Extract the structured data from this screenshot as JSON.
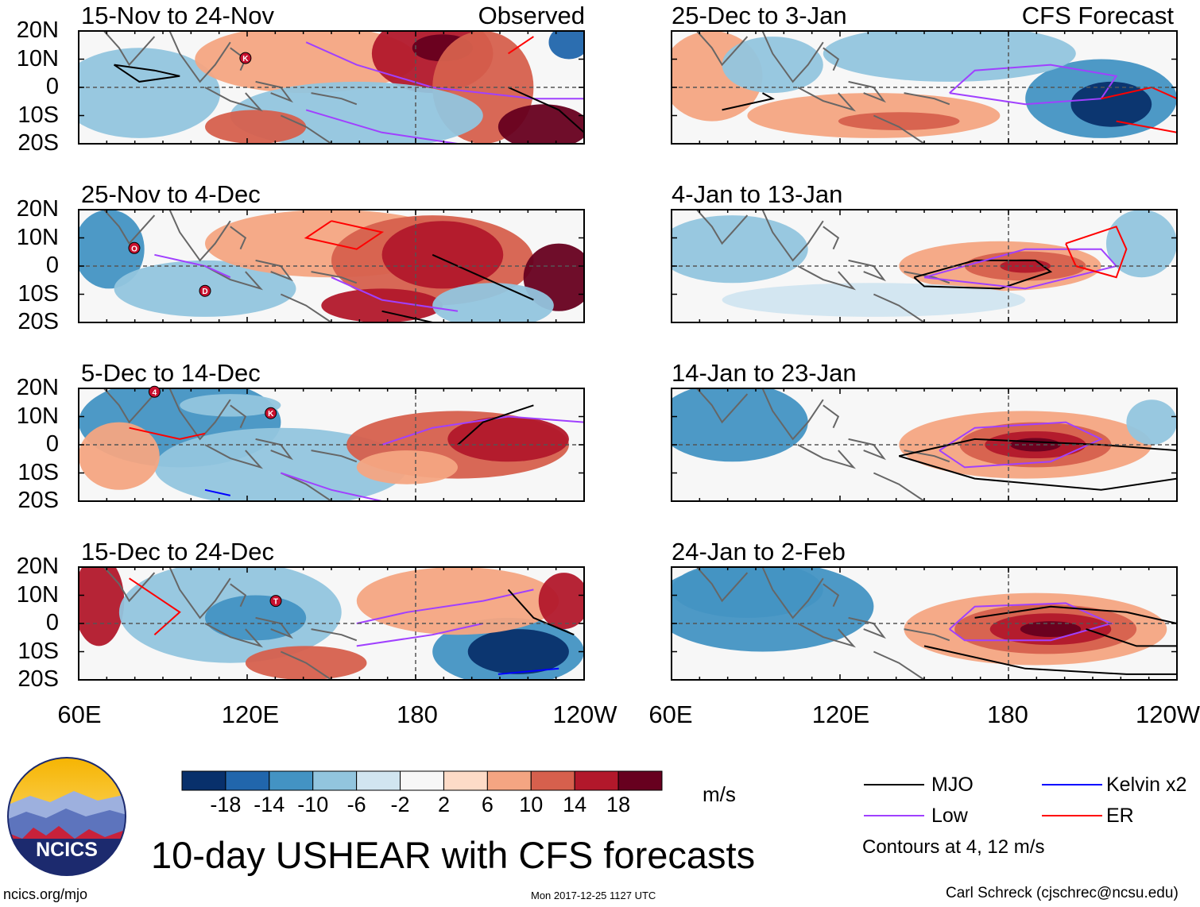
{
  "figure": {
    "title": "10-day USHEAR with CFS forecasts",
    "left_header": "Observed",
    "right_header": "CFS Forecast",
    "url": "ncics.org/mjo",
    "timestamp": "Mon 2017-12-25 1127 UTC",
    "author": "Carl Schreck (cjschrec@ncsu.edu)",
    "logo_text": "NCICS"
  },
  "axes": {
    "lat_labels": [
      "20N",
      "10N",
      "0",
      "10S",
      "20S"
    ],
    "lon_labels": [
      "60E",
      "120E",
      "180",
      "120W"
    ]
  },
  "panels": [
    {
      "title": "15-Nov to 24-Nov",
      "kind": "observed"
    },
    {
      "title": "25-Nov to 4-Dec",
      "kind": "observed"
    },
    {
      "title": "5-Dec to 14-Dec",
      "kind": "observed"
    },
    {
      "title": "15-Dec to 24-Dec",
      "kind": "observed"
    },
    {
      "title": "25-Dec to 3-Jan",
      "kind": "forecast"
    },
    {
      "title": "4-Jan to 13-Jan",
      "kind": "forecast"
    },
    {
      "title": "14-Jan to 23-Jan",
      "kind": "forecast"
    },
    {
      "title": "24-Jan to 2-Feb",
      "kind": "forecast"
    }
  ],
  "colorbar": {
    "unit": "m/s",
    "labels": [
      "-18",
      "-14",
      "-10",
      "-6",
      "-2",
      "2",
      "6",
      "10",
      "14",
      "18"
    ],
    "colors": [
      "#08306b",
      "#2166ac",
      "#4393c3",
      "#92c5de",
      "#d1e5f0",
      "#f7f7f7",
      "#fddbc7",
      "#f4a582",
      "#d6604d",
      "#b2182b",
      "#67001f"
    ]
  },
  "legend": {
    "items": [
      {
        "label": "MJO",
        "color": "#000000"
      },
      {
        "label": "Low",
        "color": "#a040ff"
      },
      {
        "label": "Kelvin x2",
        "color": "#0000ff"
      },
      {
        "label": "ER",
        "color": "#ff0000"
      }
    ],
    "note": "Contours at 4, 12 m/s"
  },
  "storm_markers": [
    {
      "panel": 0,
      "label": "K"
    },
    {
      "panel": 1,
      "label": "O"
    },
    {
      "panel": 1,
      "label": "D"
    },
    {
      "panel": 2,
      "label": "4"
    },
    {
      "panel": 2,
      "label": "K"
    },
    {
      "panel": 3,
      "label": "T"
    }
  ]
}
